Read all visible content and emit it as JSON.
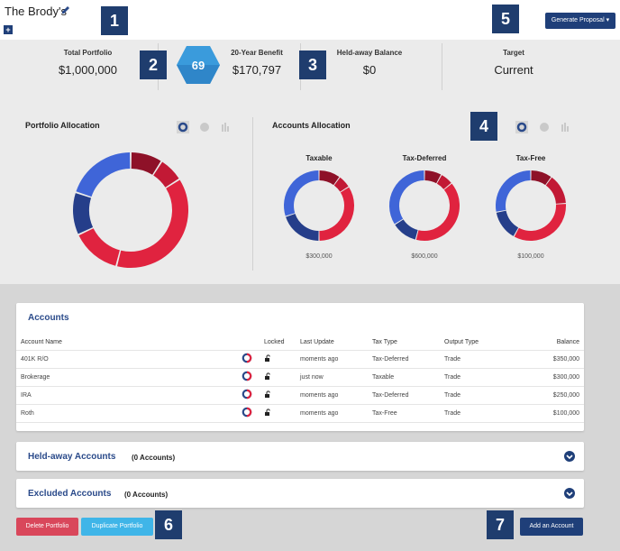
{
  "header": {
    "client_name": "The Brody's",
    "generate_label": "Generate Proposal",
    "plus_label": "+"
  },
  "callouts": [
    "1",
    "2",
    "3",
    "4",
    "5",
    "6",
    "7"
  ],
  "stats": {
    "total_portfolio_label": "Total Portfolio",
    "total_portfolio_value": "$1,000,000",
    "score": "69",
    "benefit_label": "20-Year Benefit",
    "benefit_value": "$170,797",
    "heldaway_label": "Held-away Balance",
    "heldaway_value": "$0",
    "target_label": "Target",
    "target_value": "Current"
  },
  "allocation": {
    "portfolio_title": "Portfolio Allocation",
    "accounts_title": "Accounts Allocation",
    "taxable_label": "Taxable",
    "taxable_amount": "$300,000",
    "deferred_label": "Tax-Deferred",
    "deferred_amount": "$600,000",
    "free_label": "Tax-Free",
    "free_amount": "$100,000",
    "colors": {
      "blue": "#3f65d8",
      "navy": "#253e8a",
      "red": "#e0233f",
      "darkred": "#8e1128",
      "crimson": "#c21935"
    }
  },
  "accounts": {
    "title": "Accounts",
    "headers": [
      "Account Name",
      "Locked",
      "Last Update",
      "Tax Type",
      "Output Type",
      "Balance"
    ],
    "rows": [
      {
        "name": "401K R/O",
        "update": "moments ago",
        "tax": "Tax-Deferred",
        "output": "Trade",
        "balance": "$350,000"
      },
      {
        "name": "Brokerage",
        "update": "just now",
        "tax": "Taxable",
        "output": "Trade",
        "balance": "$300,000"
      },
      {
        "name": "IRA",
        "update": "moments ago",
        "tax": "Tax-Deferred",
        "output": "Trade",
        "balance": "$250,000"
      },
      {
        "name": "Roth",
        "update": "moments ago",
        "tax": "Tax-Free",
        "output": "Trade",
        "balance": "$100,000"
      }
    ]
  },
  "heldaway": {
    "title": "Held-away Accounts",
    "count": "(0 Accounts)"
  },
  "excluded": {
    "title": "Excluded Accounts",
    "count": "(0 Accounts)"
  },
  "footer": {
    "delete_label": "Delete Portfolio",
    "duplicate_label": "Duplicate Portfolio",
    "add_label": "Add an Account"
  }
}
